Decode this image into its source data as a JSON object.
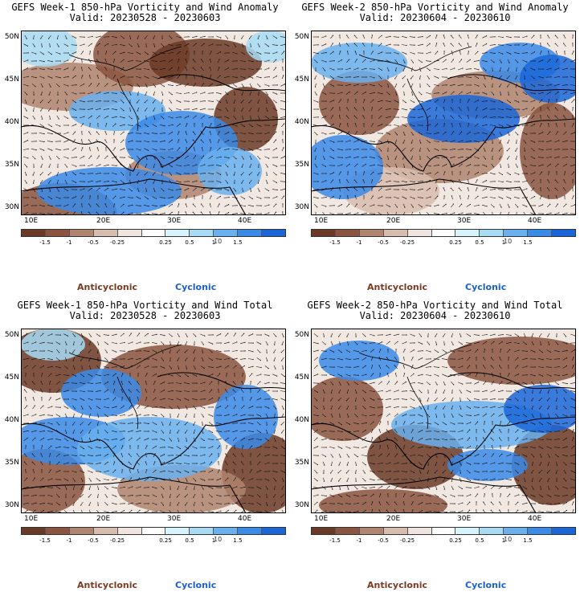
{
  "panels": [
    {
      "line1": "GEFS Week-1 850-hPa Vorticity and Wind Anomaly",
      "line2": "Valid: 20230528 - 20230603"
    },
    {
      "line1": "GEFS Week-2 850-hPa Vorticity and Wind Anomaly",
      "line2": "Valid: 20230604 - 20230610"
    },
    {
      "line1": "GEFS Week-1 850-hPa Vorticity and Wind Total",
      "line2": "Valid: 20230528 - 20230603"
    },
    {
      "line1": "GEFS Week-2 850-hPa Vorticity and Wind Total",
      "line2": "Valid: 20230604 - 20230610"
    }
  ],
  "lat_labels": [
    "50N",
    "45N",
    "40N",
    "35N",
    "30N"
  ],
  "lon_labels": [
    "10E",
    "20E",
    "30E",
    "40E"
  ],
  "colorbar": {
    "labels": [
      "-1.5",
      "-1",
      "-0.5",
      "-0.25",
      "0.25",
      "0.5",
      "1",
      "1.5"
    ],
    "unit": "10",
    "colors": [
      "#6b3a26",
      "#8a5440",
      "#b0846e",
      "#d8bcae",
      "#f0e4de",
      "#ffffff",
      "#d5f4fb",
      "#a8dcf4",
      "#6ab0ee",
      "#3a8ae8",
      "#1a66d8"
    ]
  },
  "legend": {
    "anticyclonic": "Anticyclonic",
    "cyclonic": "Cyclonic"
  }
}
